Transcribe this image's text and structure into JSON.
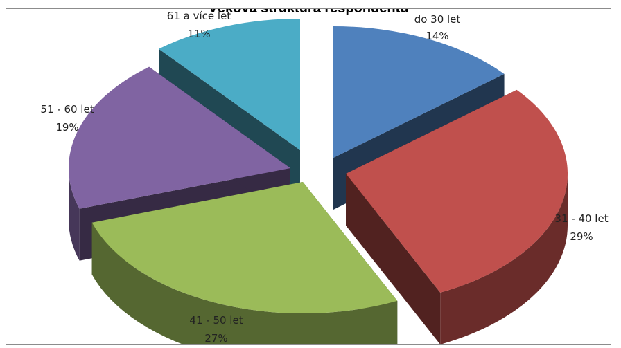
{
  "chart_data": {
    "type": "pie",
    "title": "Věková struktura respondentů",
    "slices": [
      {
        "label": "do 30 let",
        "percent_label": "14%",
        "value": 14,
        "color": "#4F81BD"
      },
      {
        "label": "31 - 40 let",
        "percent_label": "29%",
        "value": 29,
        "color": "#C0504D"
      },
      {
        "label": "41 - 50 let",
        "percent_label": "27%",
        "value": 27,
        "color": "#9BBB59"
      },
      {
        "label": "51 - 60 let",
        "percent_label": "19%",
        "value": 19,
        "color": "#8064A2"
      },
      {
        "label": "61 a více let",
        "percent_label": "11%",
        "value": 11,
        "color": "#4BACC6"
      }
    ],
    "style": "3d-exploded-pie",
    "legend": "none"
  }
}
